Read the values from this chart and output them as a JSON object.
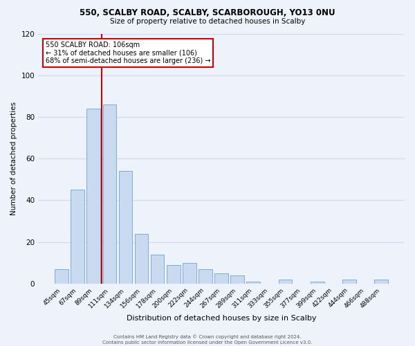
{
  "title1": "550, SCALBY ROAD, SCALBY, SCARBOROUGH, YO13 0NU",
  "title2": "Size of property relative to detached houses in Scalby",
  "xlabel": "Distribution of detached houses by size in Scalby",
  "ylabel": "Number of detached properties",
  "bar_labels": [
    "45sqm",
    "67sqm",
    "89sqm",
    "111sqm",
    "134sqm",
    "156sqm",
    "178sqm",
    "200sqm",
    "222sqm",
    "244sqm",
    "267sqm",
    "289sqm",
    "311sqm",
    "333sqm",
    "355sqm",
    "377sqm",
    "399sqm",
    "422sqm",
    "444sqm",
    "466sqm",
    "488sqm"
  ],
  "bar_values": [
    7,
    45,
    84,
    86,
    54,
    24,
    14,
    9,
    10,
    7,
    5,
    4,
    1,
    0,
    2,
    0,
    1,
    0,
    2,
    0,
    2
  ],
  "bar_color": "#c8d9f0",
  "bar_edge_color": "#7badd6",
  "vline_color": "#cc0000",
  "vline_x_index": 3,
  "ylim": [
    0,
    120
  ],
  "yticks": [
    0,
    20,
    40,
    60,
    80,
    100,
    120
  ],
  "annotation_title": "550 SCALBY ROAD: 106sqm",
  "annotation_line1": "← 31% of detached houses are smaller (106)",
  "annotation_line2": "68% of semi-detached houses are larger (236) →",
  "annotation_box_color": "#ffffff",
  "annotation_box_edge": "#cc0000",
  "footer1": "Contains HM Land Registry data © Crown copyright and database right 2024.",
  "footer2": "Contains public sector information licensed under the Open Government Licence v3.0.",
  "bg_color": "#eef2fb",
  "plot_bg_color": "#eef2fb",
  "grid_color": "#d0d8ee"
}
